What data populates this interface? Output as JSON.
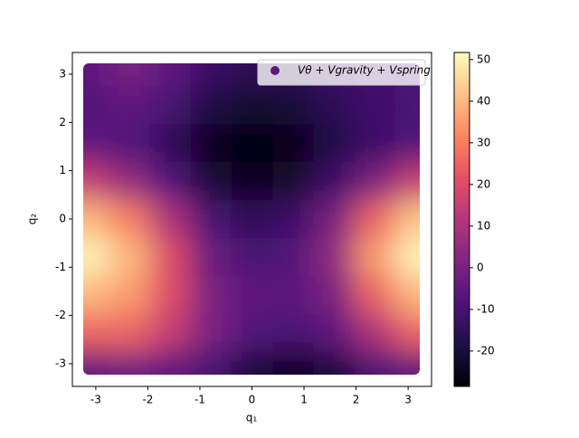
{
  "chart_data": {
    "type": "heatmap",
    "xlabel": "q₁",
    "ylabel": "q₂",
    "x": [
      -3.14,
      -2.36,
      -1.57,
      -0.79,
      0,
      0.79,
      1.57,
      2.36,
      3.14
    ],
    "y": [
      3.14,
      2.36,
      1.57,
      0.79,
      0,
      -0.79,
      -1.57,
      -2.36,
      -3.14
    ],
    "z": [
      [
        -5,
        0,
        -5,
        -12,
        -15,
        -15,
        -12,
        -10,
        -8
      ],
      [
        -8,
        -5,
        -10,
        -18,
        -22,
        -20,
        -15,
        -12,
        -10
      ],
      [
        -5,
        -8,
        -15,
        -25,
        -28,
        -26,
        -18,
        -12,
        -8
      ],
      [
        15,
        5,
        -8,
        -20,
        -25,
        -22,
        -12,
        0,
        15
      ],
      [
        40,
        30,
        10,
        -10,
        -15,
        -12,
        0,
        25,
        42
      ],
      [
        50,
        40,
        20,
        -3,
        -10,
        -8,
        5,
        35,
        50
      ],
      [
        40,
        35,
        20,
        0,
        -5,
        -5,
        0,
        25,
        40
      ],
      [
        25,
        25,
        15,
        0,
        -8,
        -10,
        -5,
        10,
        25
      ],
      [
        -5,
        -3,
        -5,
        -10,
        -20,
        -25,
        -20,
        -10,
        -5
      ]
    ],
    "xlim": [
      -3.45,
      3.45
    ],
    "ylim": [
      -3.47,
      3.45
    ],
    "xticks": [
      -3,
      -2,
      -1,
      0,
      1,
      2,
      3
    ],
    "yticks": [
      -3,
      -2,
      -1,
      0,
      1,
      2,
      3
    ],
    "clim": [
      -28.5,
      51.7
    ],
    "cticks": [
      -20,
      -10,
      0,
      10,
      20,
      30,
      40,
      50
    ],
    "colormap": [
      "#000004",
      "#1c1044",
      "#4f127b",
      "#812581",
      "#b5367a",
      "#e55064",
      "#fb8761",
      "#fec287",
      "#fcfdbf"
    ],
    "legend": {
      "name": "Vθ + Vgravity + Vspring",
      "color": "#5c1a78",
      "loc": "upper right"
    }
  }
}
